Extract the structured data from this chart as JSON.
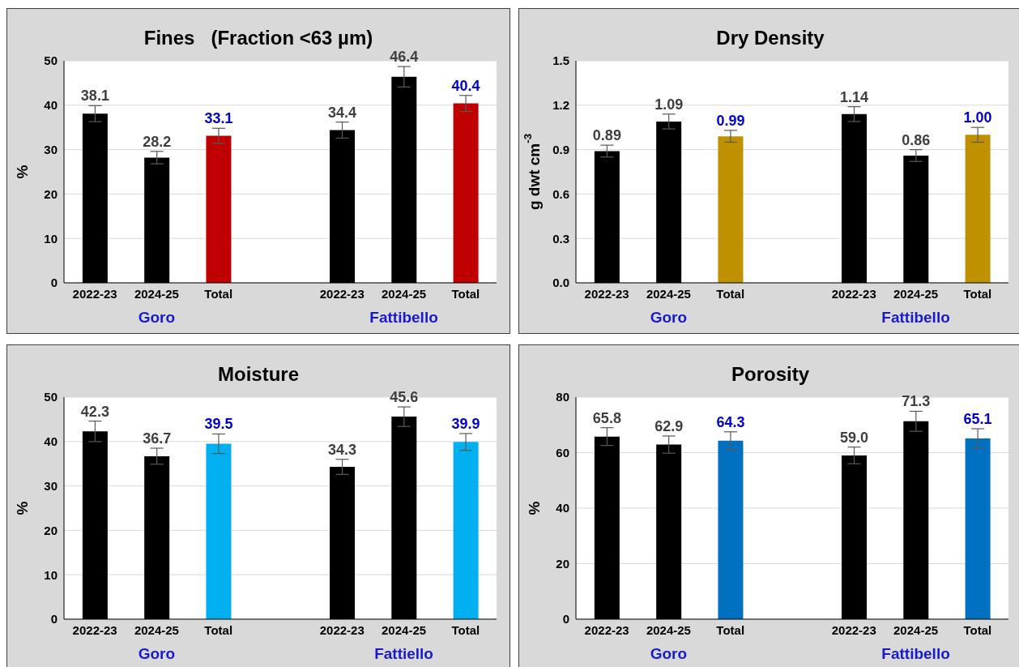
{
  "chart_data": [
    {
      "type": "bar",
      "title": "Fines   (Fraction <63 µm)",
      "ylabel": "%",
      "categories": [
        "2022-23",
        "2024-25",
        "Total",
        null,
        "2022-23",
        "2024-25",
        "Total"
      ],
      "values": [
        38.1,
        28.2,
        33.1,
        null,
        34.4,
        46.4,
        40.4
      ],
      "errors": [
        1.8,
        1.4,
        1.7,
        null,
        1.8,
        2.3,
        1.8
      ],
      "value_labels": [
        "38.1",
        "28.2",
        "33.1",
        null,
        "34.4",
        "46.4",
        "40.4"
      ],
      "colors": [
        "#000000",
        "#000000",
        "#c00000",
        null,
        "#000000",
        "#000000",
        "#c00000"
      ],
      "ylim": [
        0,
        50
      ],
      "yticks": [
        0,
        10,
        20,
        30,
        40,
        50
      ],
      "grid": "y",
      "annotations": [
        "Goro",
        "Fattibello"
      ]
    },
    {
      "type": "bar",
      "title": "Dry Density",
      "ylabel": "g dwt cm$^{-3}$",
      "categories": [
        "2022-23",
        "2024-25",
        "Total",
        null,
        "2022-23",
        "2024-25",
        "Total"
      ],
      "values": [
        0.89,
        1.09,
        0.99,
        null,
        1.14,
        0.86,
        1.0
      ],
      "errors": [
        0.04,
        0.05,
        0.04,
        null,
        0.05,
        0.04,
        0.05
      ],
      "value_labels": [
        "0.89",
        "1.09",
        "0.99",
        null,
        "1.14",
        "0.86",
        "1.00"
      ],
      "colors": [
        "#000000",
        "#000000",
        "#bf9000",
        null,
        "#000000",
        "#000000",
        "#bf9000"
      ],
      "ylim": [
        0,
        1.5
      ],
      "yticks": [
        {
          "value": 0,
          "label": "0.0"
        },
        0.3,
        0.6,
        0.9,
        1.2,
        1.5
      ],
      "grid": "y",
      "annotations": [
        "Goro",
        "Fattibello"
      ]
    },
    {
      "type": "bar",
      "title": "Moisture",
      "ylabel": "%",
      "categories": [
        "2022-23",
        "2024-25",
        "Total",
        null,
        "2022-23",
        "2024-25",
        "Total"
      ],
      "values": [
        42.3,
        36.7,
        39.5,
        null,
        34.3,
        45.6,
        39.9
      ],
      "errors": [
        2.3,
        1.8,
        2.2,
        null,
        1.7,
        2.2,
        1.9
      ],
      "value_labels": [
        "42.3",
        "36.7",
        "39.5",
        null,
        "34.3",
        "45.6",
        "39.9"
      ],
      "colors": [
        "#000000",
        "#000000",
        "#00b0f0",
        null,
        "#000000",
        "#000000",
        "#00b0f0"
      ],
      "ylim": [
        0,
        50
      ],
      "yticks": [
        0,
        10,
        20,
        30,
        40,
        50
      ],
      "grid": "y",
      "annotations": [
        "Goro",
        "Fattiello"
      ]
    },
    {
      "type": "bar",
      "title": "Porosity",
      "ylabel": "%",
      "categories": [
        "2022-23",
        "2024-25",
        "Total",
        null,
        "2022-23",
        "2024-25",
        "Total"
      ],
      "values": [
        65.8,
        62.9,
        64.3,
        null,
        59.0,
        71.3,
        65.1
      ],
      "errors": [
        3.2,
        3.1,
        3.2,
        null,
        3.0,
        3.6,
        3.5
      ],
      "value_labels": [
        "65.8",
        "62.9",
        "64.3",
        null,
        "59.0",
        "71.3",
        "65.1"
      ],
      "colors": [
        "#000000",
        "#000000",
        "#0070c0",
        null,
        "#000000",
        "#000000",
        "#0070c0"
      ],
      "ylim": [
        0,
        80
      ],
      "yticks": [
        0,
        20,
        40,
        60,
        80
      ],
      "grid": "y",
      "annotations": [
        "Goro",
        "Fattibello"
      ]
    }
  ]
}
